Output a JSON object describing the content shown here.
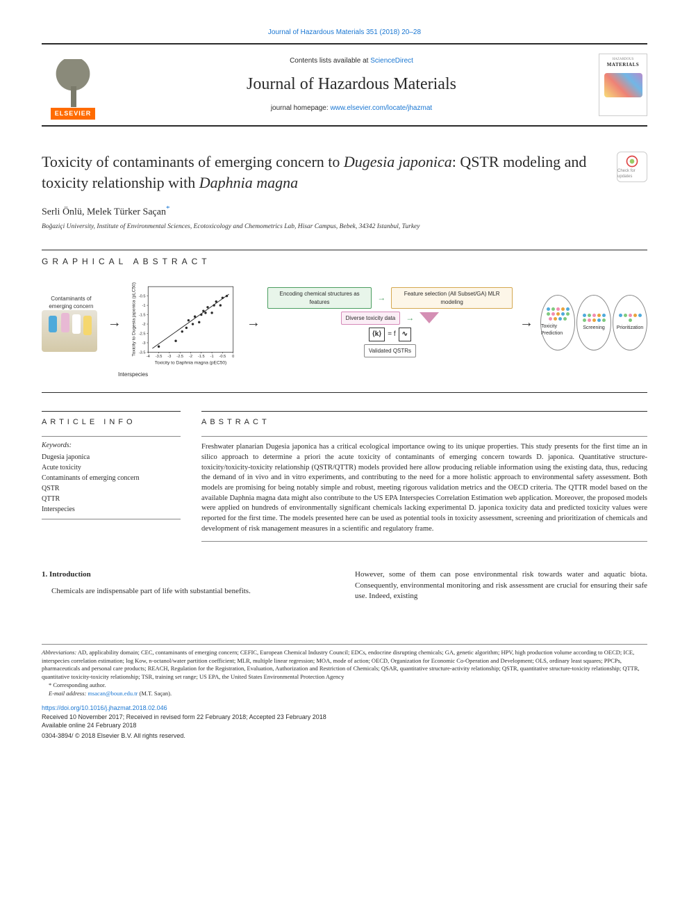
{
  "header": {
    "top_link": "Journal of Hazardous Materials 351 (2018) 20–28",
    "contents_prefix": "Contents lists available at ",
    "contents_link": "ScienceDirect",
    "journal_name": "Journal of Hazardous Materials",
    "homepage_prefix": "journal homepage: ",
    "homepage_link": "www.elsevier.com/locate/jhazmat",
    "elsevier": "ELSEVIER",
    "cover": {
      "line1": "HAZARDOUS",
      "line2": "MATERIALS"
    }
  },
  "article": {
    "title_pre": "Toxicity of contaminants of emerging concern to ",
    "title_em1": "Dugesia japonica",
    "title_mid": ": QSTR modeling and toxicity relationship with ",
    "title_em2": "Daphnia magna",
    "check_label": "Check for updates",
    "authors": "Serli Önlü, Melek Türker Saçan",
    "corr_mark": "*",
    "affiliation": "Boğaziçi University, Institute of Environmental Sciences, Ecotoxicology and Chemometrics Lab, Hisar Campus, Bebek, 34342 Istanbul, Turkey"
  },
  "labels": {
    "graphical": "GRAPHICAL ABSTRACT",
    "article_info": "ARTICLE INFO",
    "abstract": "ABSTRACT"
  },
  "ga": {
    "left_caption": "Contaminants of emerging concern",
    "scatter": {
      "xlabel": "Toxicity to Daphnia magna (pEC50)",
      "ylabel": "Toxicity to Dugesia japonica (pLC50)",
      "xlim": [
        -4,
        0
      ],
      "ylim": [
        -3.5,
        0
      ],
      "xticks": [
        -4,
        -3.5,
        -3,
        -2.5,
        -2,
        -1.5,
        -1,
        -0.5,
        0
      ],
      "yticks": [
        -3.5,
        -3,
        -2.5,
        -2,
        -1.5,
        -1,
        -0.5
      ],
      "points": [
        {
          "x": -3.5,
          "y": -3.2
        },
        {
          "x": -2.7,
          "y": -2.9
        },
        {
          "x": -2.4,
          "y": -2.4
        },
        {
          "x": -2.2,
          "y": -2.2
        },
        {
          "x": -2.1,
          "y": -1.8
        },
        {
          "x": -1.9,
          "y": -2.0
        },
        {
          "x": -1.8,
          "y": -1.6
        },
        {
          "x": -1.6,
          "y": -1.9
        },
        {
          "x": -1.5,
          "y": -1.5
        },
        {
          "x": -1.4,
          "y": -1.3
        },
        {
          "x": -1.3,
          "y": -1.4
        },
        {
          "x": -1.2,
          "y": -1.1
        },
        {
          "x": -1.0,
          "y": -1.4
        },
        {
          "x": -0.9,
          "y": -1.0
        },
        {
          "x": -0.8,
          "y": -0.8
        },
        {
          "x": -0.6,
          "y": -1.0
        },
        {
          "x": -0.5,
          "y": -0.6
        },
        {
          "x": -0.3,
          "y": -0.5
        }
      ],
      "point_color": "#2a2a2a",
      "regression": {
        "x1": -3.8,
        "y1": -3.3,
        "x2": -0.2,
        "y2": -0.4,
        "color": "#2a2a2a"
      },
      "axis_color": "#2a2a2a",
      "fontsize": 7
    },
    "flow": {
      "encode": "Encoding chemical structures as features",
      "diverse": "Diverse toxicity data",
      "feature": "Feature selection (All Subset/GA) MLR modeling",
      "eq_lhs": "⟨k⟩",
      "eq_mid": "= f",
      "eq_rhs": "∿",
      "validated": "Validated QSTRs",
      "ell1": "Toxicity Prediction",
      "ell2": "Screening",
      "ell3": "Prioritization"
    },
    "dot_colors": [
      "#4faadb",
      "#7fc97f",
      "#f28cb1",
      "#e8a33d"
    ],
    "interspecies": "Interspecies"
  },
  "keywords": {
    "label": "Keywords:",
    "items": [
      "Dugesia japonica",
      "Acute toxicity",
      "Contaminants of emerging concern",
      "QSTR",
      "QTTR",
      "Interspecies"
    ]
  },
  "abstract": {
    "text": "Freshwater planarian Dugesia japonica has a critical ecological importance owing to its unique properties. This study presents for the first time an in silico approach to determine a priori the acute toxicity of contaminants of emerging concern towards D. japonica. Quantitative structure-toxicity/toxicity-toxicity relationship (QSTR/QTTR) models provided here allow producing reliable information using the existing data, thus, reducing the demand of in vivo and in vitro experiments, and contributing to the need for a more holistic approach to environmental safety assessment. Both models are promising for being notably simple and robust, meeting rigorous validation metrics and the OECD criteria. The QTTR model based on the available Daphnia magna data might also contribute to the US EPA Interspecies Correlation Estimation web application. Moreover, the proposed models were applied on hundreds of environmentally significant chemicals lacking experimental D. japonica toxicity data and predicted toxicity values were reported for the first time. The models presented here can be used as potential tools in toxicity assessment, screening and prioritization of chemicals and development of risk management measures in a scientific and regulatory frame."
  },
  "body": {
    "heading": "1. Introduction",
    "left": "Chemicals are indispensable part of life with substantial benefits.",
    "right": "However, some of them can pose environmental risk towards water and aquatic biota. Consequently, environmental monitoring and risk assessment are crucial for ensuring their safe use. Indeed, existing"
  },
  "footnotes": {
    "abbrev_label": "Abbreviations:",
    "abbrev": " AD, applicability domain; CEC, contaminants of emerging concern; CEFIC, European Chemical Industry Council; EDCs, endocrine disrupting chemicals; GA, genetic algorithm; HPV, high production volume according to OECD; ICE, interspecies correlation estimation; log Kow, n-octanol/water partition coefficient; MLR, multiple linear regression; MOA, mode of action; OECD, Organization for Economic Co-Operation and Development; OLS, ordinary least squares; PPCPs, pharmaceuticals and personal care products; REACH, Regulation for the Registration, Evaluation, Authorization and Restriction of Chemicals; QSAR, quantitative structure-activity relationship; QSTR, quantitative structure-toxicity relationship; QTTR, quantitative toxicity-toxicity relationship; TSR, training set range; US EPA, the United States Environmental Protection Agency",
    "corr": "* Corresponding author.",
    "email_label": "E-mail address: ",
    "email": "msacan@boun.edu.tr",
    "email_suffix": " (M.T. Saçan).",
    "doi": "https://doi.org/10.1016/j.jhazmat.2018.02.046",
    "received": "Received 10 November 2017; Received in revised form 22 February 2018; Accepted 23 February 2018",
    "available": "Available online 24 February 2018",
    "copyright": "0304-3894/ © 2018 Elsevier B.V. All rights reserved."
  },
  "colors": {
    "link": "#1976d2",
    "text": "#2a2a2a",
    "elsevier_orange": "#ff6b00"
  }
}
